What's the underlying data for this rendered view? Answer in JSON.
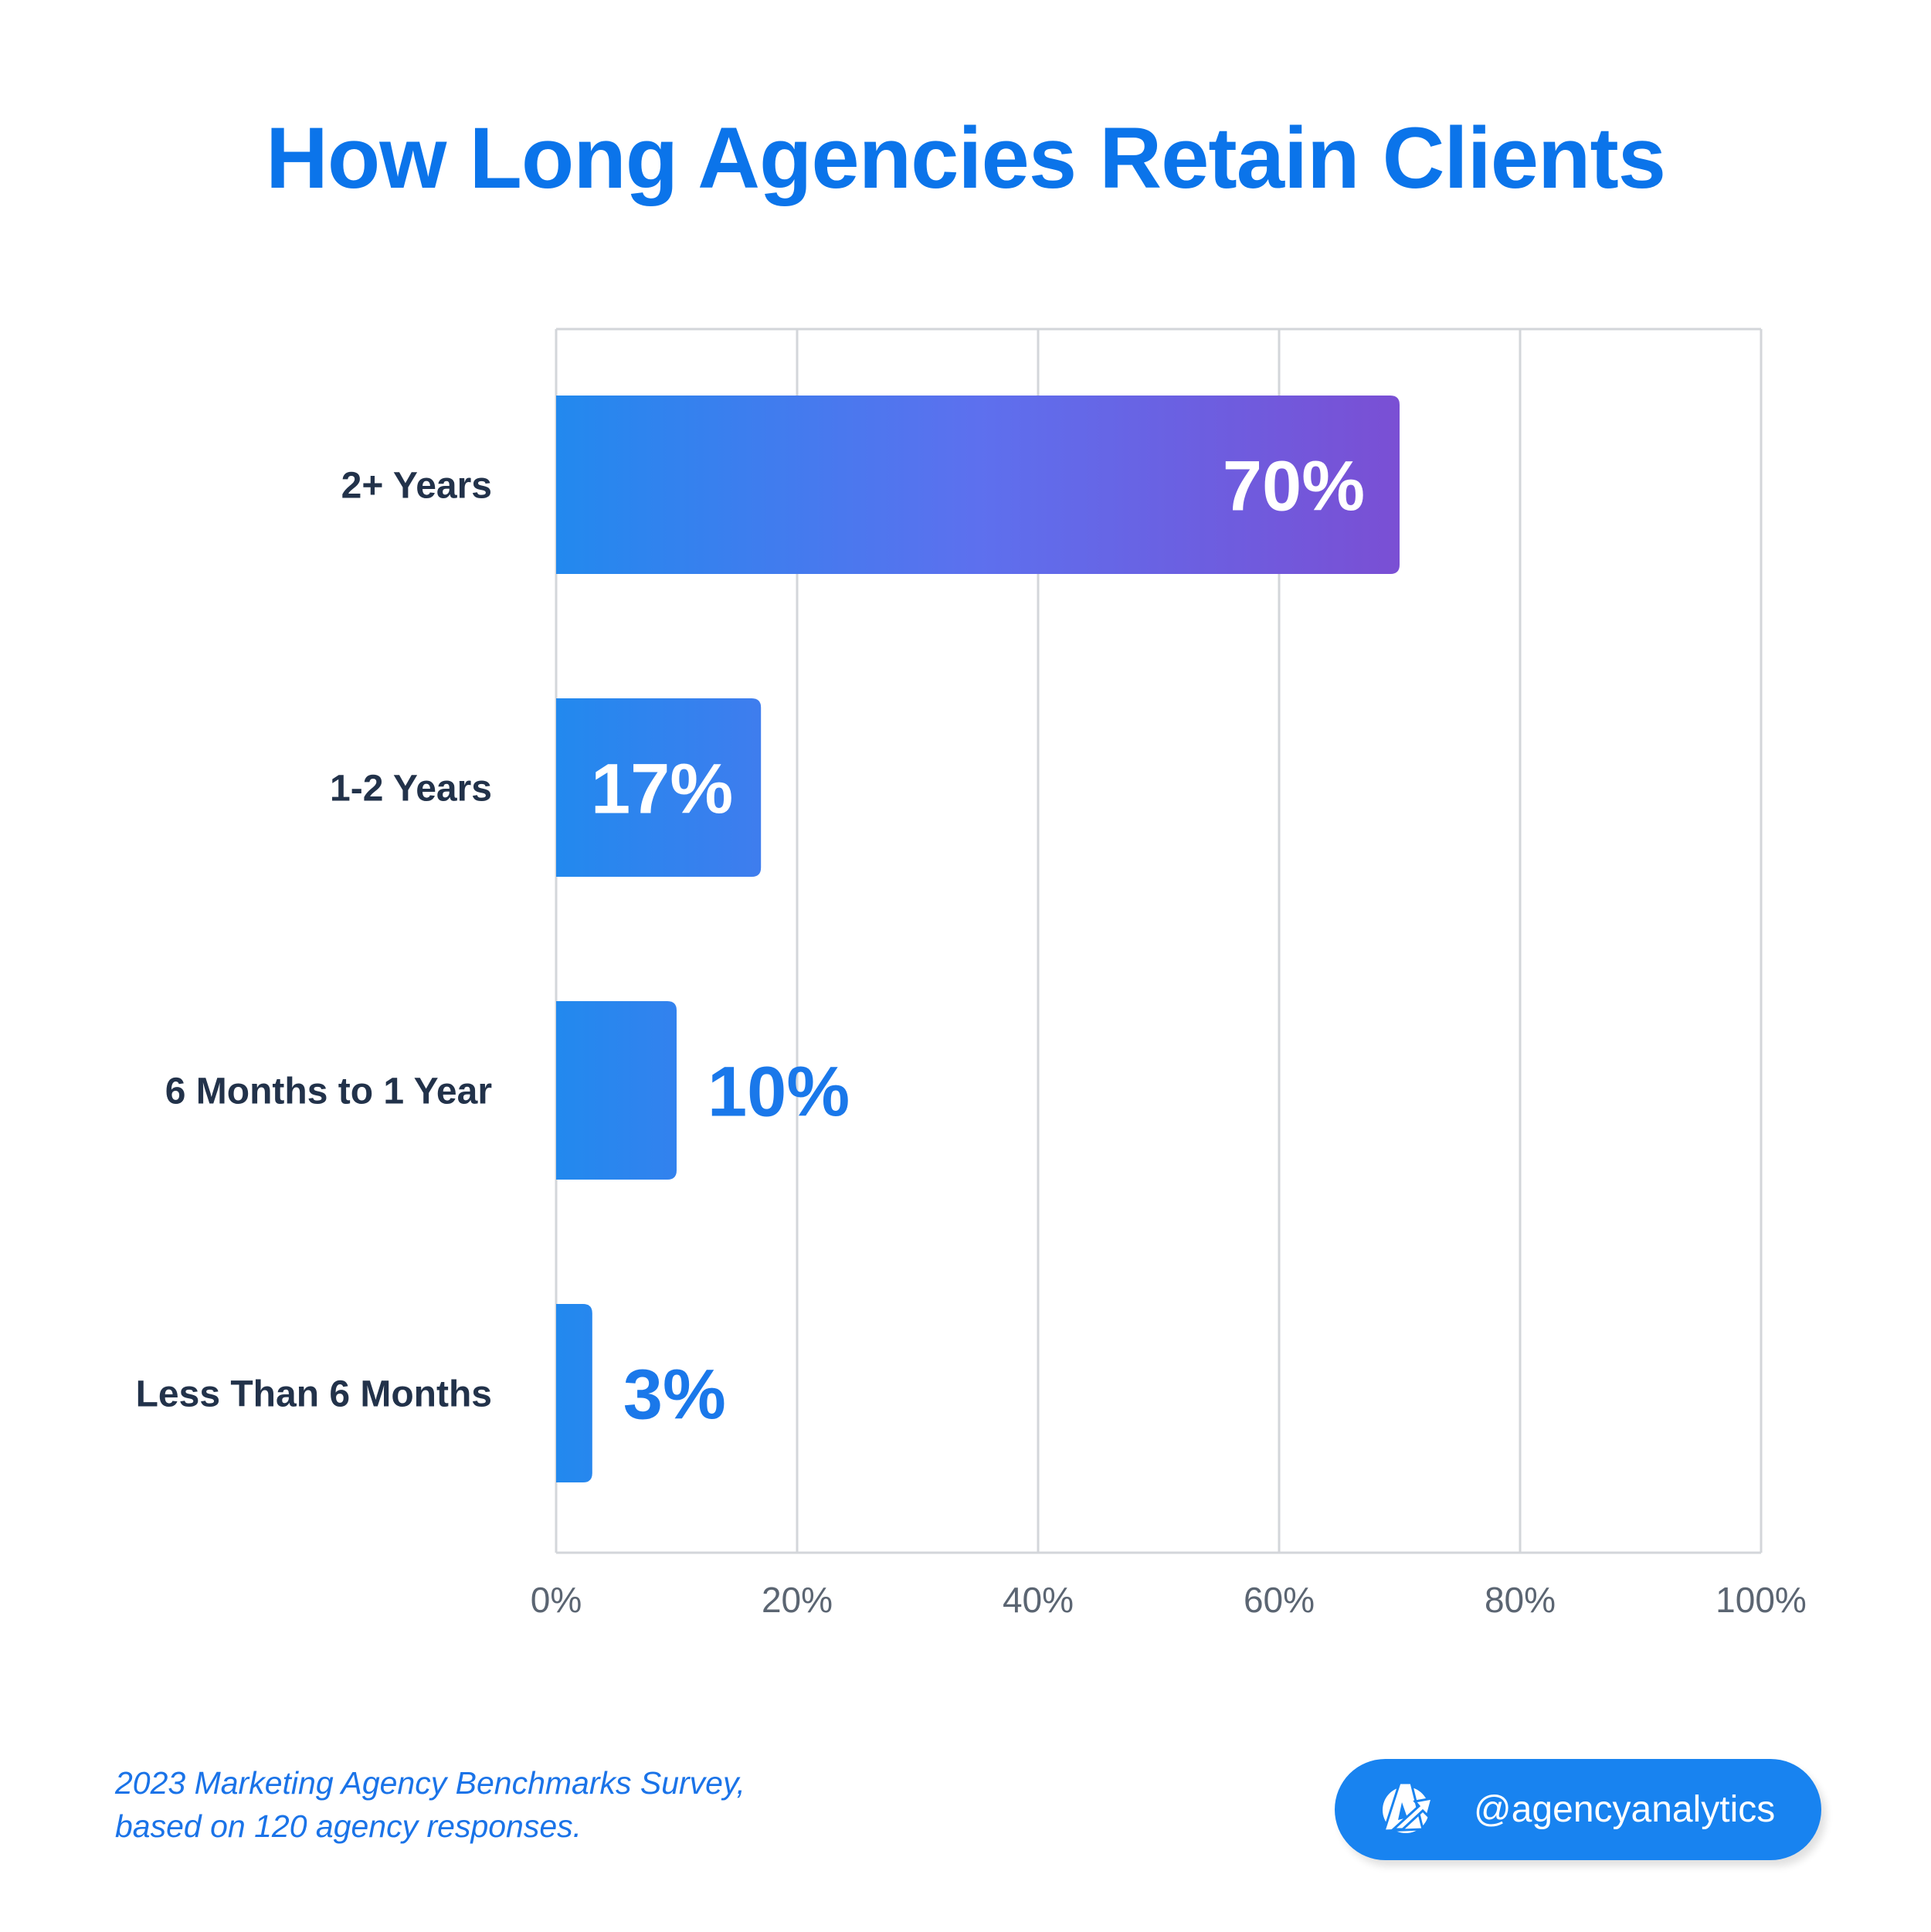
{
  "chart_data": {
    "type": "bar",
    "orientation": "horizontal",
    "title": "How Long Agencies Retain Clients",
    "categories": [
      "2+ Years",
      "1-2 Years",
      "6 Months to 1 Year",
      "Less Than 6 Months"
    ],
    "values": [
      70,
      17,
      10,
      3
    ],
    "data_labels": [
      "70%",
      "17%",
      "10%",
      "3%"
    ],
    "xlim": [
      0,
      100
    ],
    "x_ticks": [
      "0%",
      "20%",
      "40%",
      "60%",
      "80%",
      "100%"
    ],
    "grid": true,
    "colors": {
      "gradient_start": "#2289ee",
      "gradient_mid": "#5d70ee",
      "gradient_end": "#7a4fd4",
      "outside_label": "#1a78ea"
    }
  },
  "footer": {
    "source_line1": "2023 Marketing Agency Benchmarks Survey,",
    "source_line2": "based on 120 agency responses.",
    "handle": "@agencyanalytics",
    "logo_icon": "agencyanalytics-logo"
  }
}
